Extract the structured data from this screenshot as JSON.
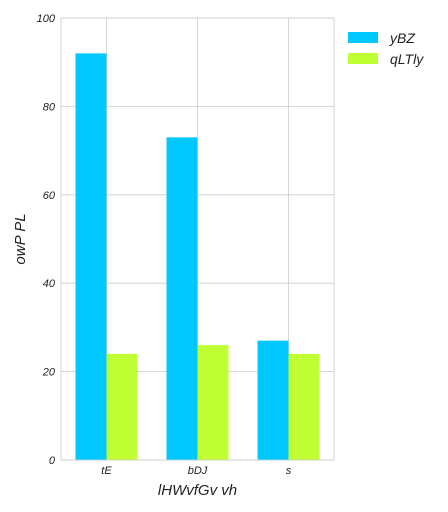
{
  "chart_data": {
    "type": "bar",
    "categories": [
      "tE",
      "bDJ",
      "s"
    ],
    "series": [
      {
        "name": "yBZ",
        "values": [
          92,
          73,
          27
        ],
        "color": "#00c8ff"
      },
      {
        "name": "qLTly",
        "values": [
          24,
          26,
          24
        ],
        "color": "#bfff33"
      }
    ],
    "xlabel": "lHWvfGv vh",
    "ylabel": "owP PL",
    "ylim": [
      0,
      100
    ],
    "yticks": [
      0,
      20,
      40,
      60,
      80,
      100
    ],
    "grid": true,
    "legend_position": "top-right-outside"
  }
}
